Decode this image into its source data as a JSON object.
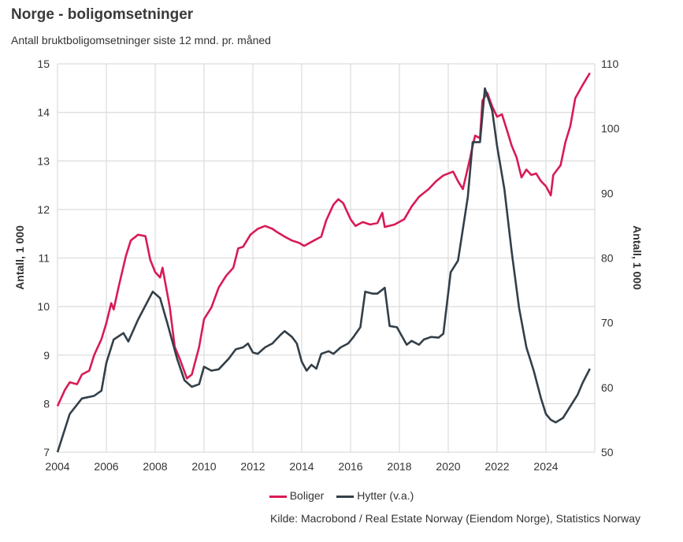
{
  "title": "Norge - boligomsetninger",
  "subtitle": "Antall bruktboligomsetninger siste 12 mnd. pr. måned",
  "source": "Kilde: Macrobond / Real Estate Norway (Eiendom Norge), Statistics Norway",
  "chart_data": {
    "type": "line",
    "title": "Norge - boligomsetninger",
    "xlim": [
      2004,
      2026
    ],
    "x_ticks": [
      "2004",
      "2006",
      "2008",
      "2010",
      "2012",
      "2014",
      "2016",
      "2018",
      "2020",
      "2022",
      "2024"
    ],
    "y_left": {
      "label": "Antall, 1 000",
      "lim": [
        7,
        15
      ],
      "ticks": [
        "7",
        "8",
        "9",
        "10",
        "11",
        "12",
        "13",
        "14",
        "15"
      ]
    },
    "y_right": {
      "label": "Antall, 1 000",
      "lim": [
        50,
        110
      ],
      "ticks": [
        "50",
        "60",
        "70",
        "80",
        "90",
        "100",
        "110"
      ]
    },
    "grid": true,
    "legend_position": "bottom",
    "series": [
      {
        "name": "Boliger",
        "axis": "left",
        "color": "#d81b55",
        "x": [
          2004.0,
          2004.3,
          2004.5,
          2004.8,
          2005.0,
          2005.3,
          2005.5,
          2005.8,
          2006.0,
          2006.2,
          2006.3,
          2006.5,
          2006.8,
          2007.0,
          2007.3,
          2007.6,
          2007.8,
          2008.0,
          2008.2,
          2008.3,
          2008.6,
          2008.8,
          2009.0,
          2009.3,
          2009.5,
          2009.8,
          2010.0,
          2010.3,
          2010.6,
          2010.9,
          2011.2,
          2011.4,
          2011.6,
          2011.9,
          2012.2,
          2012.5,
          2012.8,
          2013.0,
          2013.3,
          2013.6,
          2013.9,
          2014.1,
          2014.5,
          2014.8,
          2015.0,
          2015.3,
          2015.5,
          2015.7,
          2016.0,
          2016.2,
          2016.5,
          2016.8,
          2017.1,
          2017.3,
          2017.4,
          2017.8,
          2018.2,
          2018.5,
          2018.8,
          2019.2,
          2019.5,
          2019.8,
          2020.2,
          2020.4,
          2020.6,
          2020.9,
          2021.0,
          2021.1,
          2021.3,
          2021.4,
          2021.6,
          2021.8,
          2022.0,
          2022.2,
          2022.4,
          2022.6,
          2022.8,
          2023.0,
          2023.2,
          2023.4,
          2023.6,
          2023.8,
          2024.0,
          2024.2,
          2024.3,
          2024.6,
          2024.8,
          2025.0,
          2025.2,
          2025.5,
          2025.8
        ],
        "values": [
          7.95,
          8.28,
          8.44,
          8.4,
          8.6,
          8.68,
          9.0,
          9.33,
          9.66,
          10.07,
          9.94,
          10.4,
          11.04,
          11.36,
          11.48,
          11.45,
          10.96,
          10.71,
          10.6,
          10.8,
          9.98,
          9.17,
          8.93,
          8.52,
          8.6,
          9.17,
          9.74,
          9.98,
          10.39,
          10.63,
          10.8,
          11.2,
          11.23,
          11.48,
          11.6,
          11.66,
          11.6,
          11.53,
          11.44,
          11.36,
          11.31,
          11.25,
          11.36,
          11.44,
          11.77,
          12.1,
          12.21,
          12.13,
          11.8,
          11.66,
          11.74,
          11.69,
          11.72,
          11.93,
          11.64,
          11.69,
          11.8,
          12.06,
          12.26,
          12.42,
          12.58,
          12.7,
          12.78,
          12.58,
          12.42,
          13.07,
          13.31,
          13.52,
          13.47,
          14.24,
          14.4,
          14.12,
          13.91,
          13.96,
          13.64,
          13.31,
          13.07,
          12.66,
          12.82,
          12.71,
          12.74,
          12.58,
          12.48,
          12.29,
          12.71,
          12.91,
          13.39,
          13.72,
          14.29,
          14.56,
          14.81
        ]
      },
      {
        "name": "Hytter (v.a.)",
        "axis": "right",
        "color": "#333f48",
        "x": [
          2004.0,
          2004.5,
          2005.0,
          2005.5,
          2005.8,
          2006.0,
          2006.3,
          2006.7,
          2006.9,
          2007.3,
          2007.9,
          2008.2,
          2008.5,
          2008.9,
          2009.2,
          2009.5,
          2009.8,
          2010.0,
          2010.3,
          2010.6,
          2011.0,
          2011.3,
          2011.6,
          2011.8,
          2012.0,
          2012.2,
          2012.5,
          2012.8,
          2013.1,
          2013.3,
          2013.6,
          2013.8,
          2014.0,
          2014.2,
          2014.4,
          2014.6,
          2014.8,
          2015.1,
          2015.3,
          2015.6,
          2015.9,
          2016.1,
          2016.4,
          2016.6,
          2016.9,
          2017.1,
          2017.4,
          2017.6,
          2017.9,
          2018.3,
          2018.5,
          2018.8,
          2019.0,
          2019.3,
          2019.6,
          2019.8,
          2020.1,
          2020.4,
          2020.8,
          2021.0,
          2021.3,
          2021.5,
          2021.8,
          2022.0,
          2022.3,
          2022.6,
          2022.9,
          2023.2,
          2023.5,
          2023.8,
          2024.0,
          2024.2,
          2024.4,
          2024.7,
          2025.0,
          2025.3,
          2025.5,
          2025.8
        ],
        "values": [
          50,
          55.9,
          58.3,
          58.7,
          59.5,
          63.8,
          67.4,
          68.4,
          67.1,
          70.5,
          74.8,
          73.8,
          69.9,
          64.4,
          61.1,
          60.1,
          60.5,
          63.2,
          62.6,
          62.8,
          64.4,
          65.9,
          66.2,
          66.8,
          65.4,
          65.2,
          66.2,
          66.8,
          68.0,
          68.7,
          67.8,
          66.8,
          64.0,
          62.6,
          63.5,
          62.9,
          65.2,
          65.6,
          65.2,
          66.2,
          66.8,
          67.7,
          69.3,
          74.8,
          74.5,
          74.5,
          75.4,
          69.5,
          69.3,
          66.6,
          67.2,
          66.6,
          67.4,
          67.8,
          67.7,
          68.3,
          77.8,
          79.6,
          89.4,
          97.9,
          97.9,
          106.2,
          102.8,
          97.3,
          90.6,
          80.9,
          72.3,
          66.2,
          62.6,
          58.3,
          55.9,
          55.0,
          54.6,
          55.3,
          57.1,
          58.9,
          60.7,
          62.9
        ]
      }
    ]
  }
}
